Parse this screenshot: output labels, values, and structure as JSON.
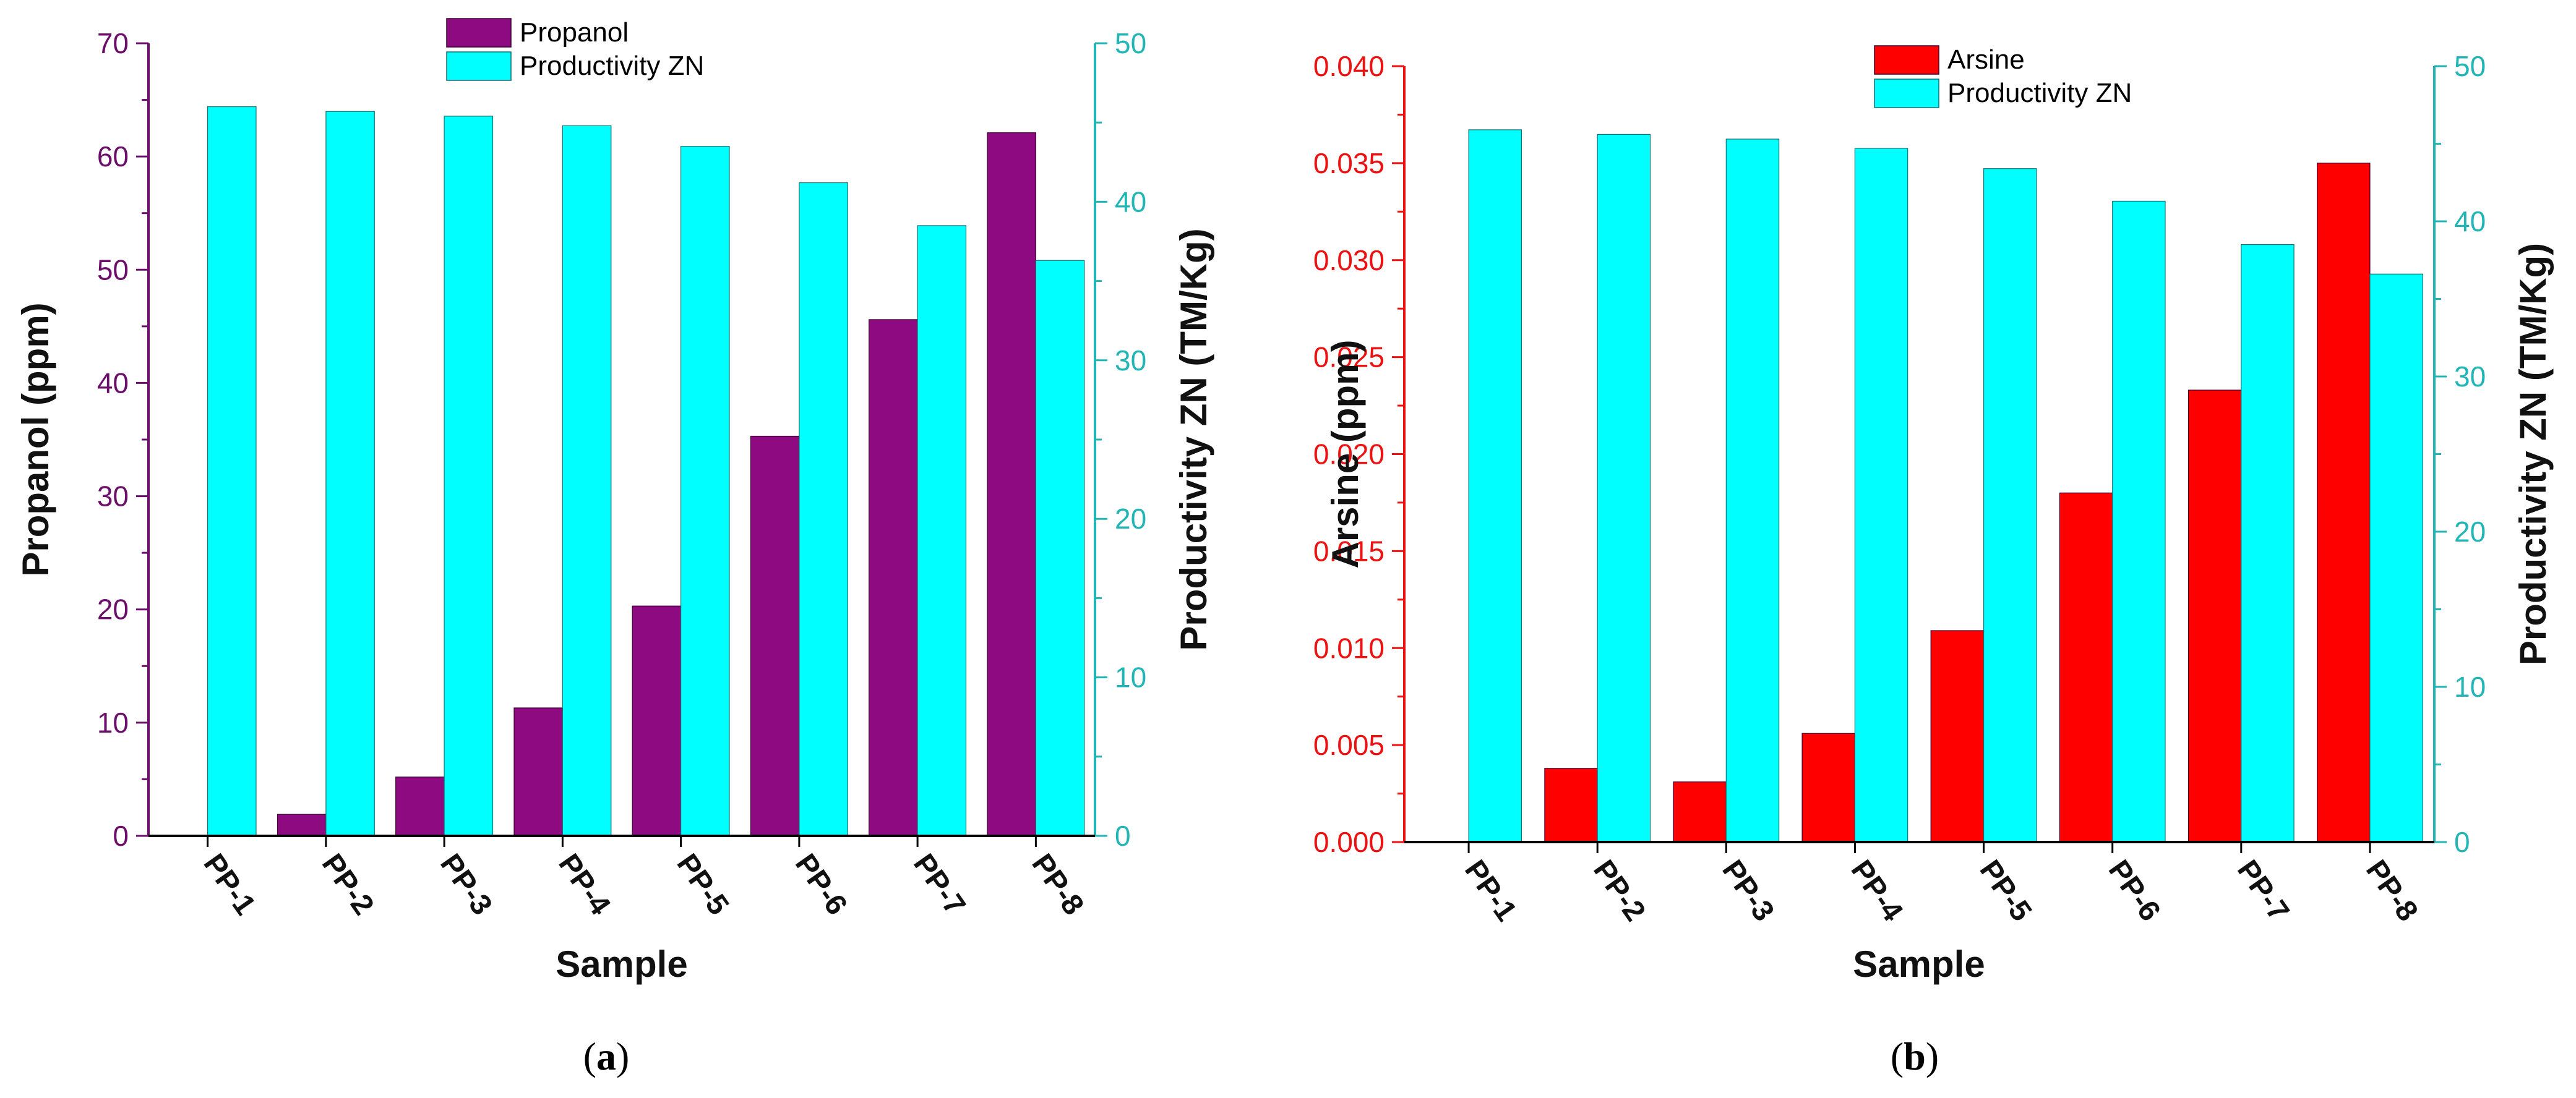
{
  "chart_data": [
    {
      "type": "bar",
      "panel_label": "(a)",
      "xlabel": "Sample",
      "categories": [
        "PP-1",
        "PP-2",
        "PP-3",
        "PP-4",
        "PP-5",
        "PP-6",
        "PP-7",
        "PP-8"
      ],
      "left_axis": {
        "label": "Propanol (ppm)",
        "ylim": [
          0,
          70
        ],
        "ticks": [
          "0",
          "10",
          "20",
          "30",
          "40",
          "50",
          "60",
          "70"
        ],
        "color": "#6b0f6b"
      },
      "right_axis": {
        "label": "Productivity ZN (TM/Kg)",
        "ylim": [
          0,
          50
        ],
        "ticks": [
          "0",
          "10",
          "20",
          "30",
          "40",
          "50"
        ],
        "color": "#22b5b5"
      },
      "series": [
        {
          "name": "Propanol",
          "axis": "left",
          "color": "#8e0a80",
          "values": [
            0,
            1.9,
            5.2,
            11.3,
            20.3,
            35.3,
            45.6,
            62.1
          ]
        },
        {
          "name": "Productivity ZN",
          "axis": "right",
          "color": "#00ffff",
          "values": [
            46.0,
            45.7,
            45.4,
            44.8,
            43.5,
            41.2,
            38.5,
            36.3
          ]
        }
      ],
      "legend_position": "top-center"
    },
    {
      "type": "bar",
      "panel_label": "(b)",
      "xlabel": "Sample",
      "categories": [
        "PP-1",
        "PP-2",
        "PP-3",
        "PP-4",
        "PP-5",
        "PP-6",
        "PP-7",
        "PP-8"
      ],
      "left_axis": {
        "label": "Arsine (ppm)",
        "ylim": [
          0,
          0.04
        ],
        "ticks": [
          "0.000",
          "0.005",
          "0.010",
          "0.015",
          "0.020",
          "0.025",
          "0.030",
          "0.035",
          "0.040"
        ],
        "color": "#ee1111"
      },
      "right_axis": {
        "label": "Productivity ZN (TM/Kg)",
        "ylim": [
          0,
          50
        ],
        "ticks": [
          "0",
          "10",
          "20",
          "30",
          "40",
          "50"
        ],
        "color": "#22b5b5"
      },
      "series": [
        {
          "name": "Arsine",
          "axis": "left",
          "color": "#ff0000",
          "values": [
            0,
            0.0038,
            0.0031,
            0.0056,
            0.0109,
            0.018,
            0.0233,
            0.035
          ]
        },
        {
          "name": "Productivity ZN",
          "axis": "right",
          "color": "#00ffff",
          "values": [
            45.9,
            45.6,
            45.3,
            44.7,
            43.4,
            41.3,
            38.5,
            36.6
          ]
        }
      ],
      "legend_position": "top-center"
    }
  ]
}
